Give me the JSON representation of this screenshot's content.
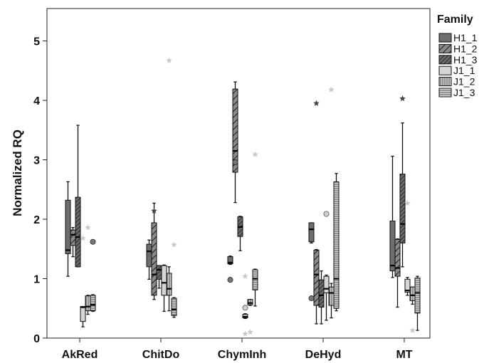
{
  "chart_data": {
    "type": "boxplot",
    "ylabel": "Normalized RQ",
    "xlabel": "",
    "ylim": [
      0,
      5.5
    ],
    "yticks": [
      "0",
      "1",
      "2",
      "3",
      "4",
      "5"
    ],
    "categories": [
      "AkRed",
      "ChitDo",
      "ChymInh",
      "DeHyd",
      "MT"
    ],
    "legend": {
      "title": "Family",
      "position": "right"
    },
    "series": [
      {
        "name": "H1_1",
        "fill": "#6d6d6d",
        "pattern": "solid",
        "boxes": [
          {
            "whisker_low": 1.04,
            "q1": 1.42,
            "median": 1.48,
            "q3": 2.32,
            "whisker_high": 2.63,
            "outliers": []
          },
          {
            "whisker_low": 0.99,
            "q1": 1.2,
            "median": 1.46,
            "q3": 1.58,
            "whisker_high": 1.65,
            "outliers": []
          },
          {
            "whisker_low": 1.24,
            "q1": 1.25,
            "median": 1.27,
            "q3": 1.37,
            "whisker_high": 1.38,
            "outliers": [
              {
                "v": 0.98,
                "m": "circle"
              }
            ]
          },
          {
            "whisker_low": 1.6,
            "q1": 1.62,
            "median": 1.83,
            "q3": 1.94,
            "whisker_high": 1.94,
            "outliers": [
              {
                "v": 0.67,
                "m": "circle"
              }
            ]
          },
          {
            "whisker_low": 1.02,
            "q1": 1.13,
            "median": 1.22,
            "q3": 1.97,
            "whisker_high": 3.06,
            "outliers": []
          }
        ]
      },
      {
        "name": "H1_2",
        "fill": "#8a8a8a",
        "pattern": "diag",
        "boxes": [
          {
            "whisker_low": 1.37,
            "q1": 1.56,
            "median": 1.74,
            "q3": 1.82,
            "whisker_high": 1.86,
            "outliers": []
          },
          {
            "whisker_low": 0.65,
            "q1": 0.72,
            "median": 1.07,
            "q3": 1.94,
            "whisker_high": 2.27,
            "outliers": [
              {
                "v": 2.14,
                "m": "star-dark"
              }
            ]
          },
          {
            "whisker_low": 2.28,
            "q1": 2.79,
            "median": 3.15,
            "q3": 4.19,
            "whisker_high": 4.31,
            "outliers": [
              {
                "v": 2.96,
                "m": "circle"
              }
            ]
          },
          {
            "whisker_low": 0.24,
            "q1": 0.55,
            "median": 1.07,
            "q3": 1.48,
            "whisker_high": 1.49,
            "outliers": [
              {
                "v": 3.95,
                "m": "star-dark"
              }
            ]
          },
          {
            "whisker_low": 0.52,
            "q1": 1.04,
            "median": 1.18,
            "q3": 1.66,
            "whisker_high": 1.67,
            "outliers": []
          }
        ]
      },
      {
        "name": "H1_3",
        "fill": "#6a6a6a",
        "pattern": "diag-dense",
        "boxes": [
          {
            "whisker_low": 1.2,
            "q1": 1.2,
            "median": 1.7,
            "q3": 2.37,
            "whisker_high": 3.58,
            "outliers": []
          },
          {
            "whisker_low": 0.84,
            "q1": 0.99,
            "median": 1.15,
            "q3": 1.22,
            "whisker_high": 1.22,
            "outliers": []
          },
          {
            "whisker_low": 1.47,
            "q1": 1.71,
            "median": 1.87,
            "q3": 2.04,
            "whisker_high": 2.05,
            "outliers": []
          },
          {
            "whisker_low": 0.24,
            "q1": 0.52,
            "median": 0.72,
            "q3": 0.98,
            "whisker_high": 1.13,
            "outliers": []
          },
          {
            "whisker_low": 1.2,
            "q1": 1.6,
            "median": 1.92,
            "q3": 2.76,
            "whisker_high": 3.62,
            "outliers": [
              {
                "v": 4.03,
                "m": "star-dark"
              }
            ]
          }
        ]
      },
      {
        "name": "J1_1",
        "fill": "#d6d6d6",
        "pattern": "solid",
        "boxes": [
          {
            "whisker_low": 0.19,
            "q1": 0.28,
            "median": 0.52,
            "q3": 0.53,
            "whisker_high": 0.53,
            "outliers": [
              {
                "v": 1.68,
                "m": "star-light"
              }
            ]
          },
          {
            "whisker_low": 0.45,
            "q1": 0.72,
            "median": 0.93,
            "q3": 1.22,
            "whisker_high": 1.23,
            "outliers": []
          },
          {
            "whisker_low": 0.33,
            "q1": 0.34,
            "median": 0.36,
            "q3": 0.4,
            "whisker_high": 0.41,
            "outliers": [
              {
                "v": 0.51,
                "m": "circle-light"
              },
              {
                "v": 1.04,
                "m": "star-light"
              },
              {
                "v": 0.07,
                "m": "star-light"
              }
            ]
          },
          {
            "whisker_low": 0.3,
            "q1": 0.76,
            "median": 0.83,
            "q3": 1.04,
            "whisker_high": 1.06,
            "outliers": [
              {
                "v": 2.09,
                "m": "circle-light"
              }
            ]
          },
          {
            "whisker_low": 0.72,
            "q1": 0.77,
            "median": 0.8,
            "q3": 0.99,
            "whisker_high": 1.02,
            "outliers": [
              {
                "v": 2.27,
                "m": "star-light"
              }
            ]
          }
        ]
      },
      {
        "name": "J1_2",
        "fill": "#c4c4c4",
        "pattern": "vertical",
        "boxes": [
          {
            "whisker_low": 0.4,
            "q1": 0.46,
            "median": 0.53,
            "q3": 0.71,
            "whisker_high": 0.72,
            "outliers": [
              {
                "v": 1.86,
                "m": "star-light"
              }
            ]
          },
          {
            "whisker_low": 0.46,
            "q1": 0.72,
            "median": 0.83,
            "q3": 1.09,
            "whisker_high": 1.2,
            "outliers": [
              {
                "v": 4.67,
                "m": "star-light"
              }
            ]
          },
          {
            "whisker_low": 0.55,
            "q1": 0.56,
            "median": 0.59,
            "q3": 0.65,
            "whisker_high": 0.65,
            "outliers": [
              {
                "v": 0.1,
                "m": "star-light"
              }
            ]
          },
          {
            "whisker_low": 0.34,
            "q1": 0.55,
            "median": 0.76,
            "q3": 0.86,
            "whisker_high": 0.92,
            "outliers": [
              {
                "v": 4.18,
                "m": "star-light"
              }
            ]
          },
          {
            "whisker_low": 0.57,
            "q1": 0.63,
            "median": 0.72,
            "q3": 0.86,
            "whisker_high": 0.86,
            "outliers": [
              {
                "v": 0.13,
                "m": "star-light"
              }
            ]
          }
        ]
      },
      {
        "name": "J1_3",
        "fill": "#cfcfcf",
        "pattern": "horizontal",
        "boxes": [
          {
            "whisker_low": 0.45,
            "q1": 0.46,
            "median": 0.56,
            "q3": 0.72,
            "whisker_high": 0.73,
            "outliers": [
              {
                "v": 1.62,
                "m": "circle"
              }
            ]
          },
          {
            "whisker_low": 0.35,
            "q1": 0.38,
            "median": 0.48,
            "q3": 0.67,
            "whisker_high": 0.68,
            "outliers": [
              {
                "v": 1.57,
                "m": "star-light"
              }
            ]
          },
          {
            "whisker_low": 0.54,
            "q1": 0.81,
            "median": 1.0,
            "q3": 1.15,
            "whisker_high": 1.16,
            "outliers": [
              {
                "v": 3.09,
                "m": "star-light"
              }
            ]
          },
          {
            "whisker_low": 0.46,
            "q1": 0.5,
            "median": 1.0,
            "q3": 2.63,
            "whisker_high": 2.77,
            "outliers": []
          },
          {
            "whisker_low": 0.13,
            "q1": 0.42,
            "median": 0.76,
            "q3": 1.01,
            "whisker_high": 1.04,
            "outliers": []
          }
        ]
      }
    ]
  }
}
